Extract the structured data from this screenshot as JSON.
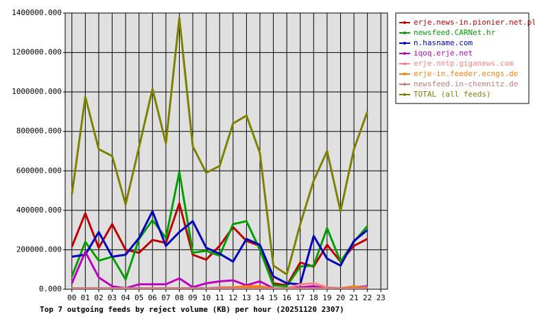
{
  "chart_data": {
    "type": "line",
    "title": "Top 7 outgoing feeds by reject volume (KB) per hour (20251120 2307)",
    "categories": [
      "00",
      "01",
      "02",
      "03",
      "04",
      "05",
      "06",
      "07",
      "08",
      "09",
      "10",
      "11",
      "12",
      "13",
      "14",
      "15",
      "16",
      "17",
      "18",
      "19",
      "20",
      "21",
      "22",
      "23"
    ],
    "ylim": [
      0,
      1400000
    ],
    "yticks": [
      {
        "value": 0,
        "label": "0.000"
      },
      {
        "value": 200000,
        "label": "200000.000"
      },
      {
        "value": 400000,
        "label": "400000.000"
      },
      {
        "value": 600000,
        "label": "600000.000"
      },
      {
        "value": 800000,
        "label": "800000.000"
      },
      {
        "value": 1000000,
        "label": "1000000.000"
      },
      {
        "value": 1200000,
        "label": "1200000.000"
      },
      {
        "value": 1400000,
        "label": "1400000.000"
      }
    ],
    "grid": true,
    "legend": "right",
    "series": [
      {
        "name": "erje.news-in.pionier.net.pl",
        "color": "#c00000",
        "values": [
          215000,
          385000,
          210000,
          330000,
          200000,
          185000,
          250000,
          235000,
          435000,
          175000,
          150000,
          220000,
          315000,
          245000,
          220000,
          30000,
          20000,
          135000,
          115000,
          225000,
          140000,
          220000,
          255000,
          null
        ]
      },
      {
        "name": "newsfeed.CARNet.hr",
        "color": "#00a000",
        "values": [
          65000,
          240000,
          145000,
          165000,
          50000,
          255000,
          350000,
          260000,
          595000,
          185000,
          195000,
          170000,
          330000,
          345000,
          200000,
          20000,
          15000,
          115000,
          120000,
          310000,
          140000,
          240000,
          320000,
          null
        ]
      },
      {
        "name": "n.hasname.com",
        "color": "#0000c0",
        "values": [
          165000,
          175000,
          290000,
          165000,
          175000,
          260000,
          395000,
          220000,
          290000,
          345000,
          210000,
          180000,
          140000,
          255000,
          225000,
          65000,
          30000,
          25000,
          270000,
          155000,
          120000,
          245000,
          300000,
          null
        ]
      },
      {
        "name": "iqoq.erje.net",
        "color": "#c000c0",
        "values": [
          30000,
          190000,
          60000,
          15000,
          5000,
          25000,
          25000,
          25000,
          55000,
          10000,
          30000,
          40000,
          45000,
          20000,
          40000,
          5000,
          5000,
          10000,
          15000,
          5000,
          5000,
          10000,
          15000,
          null
        ]
      },
      {
        "name": "erje.nntp.giganews.com",
        "color": "#ff8080",
        "values": [
          5000,
          5000,
          5000,
          5000,
          5000,
          5000,
          5000,
          5000,
          5000,
          5000,
          5000,
          10000,
          10000,
          10000,
          10000,
          5000,
          5000,
          25000,
          30000,
          10000,
          5000,
          10000,
          10000,
          null
        ]
      },
      {
        "name": "erje-in.feeder.ecngs.de",
        "color": "#ff8000",
        "values": [
          5000,
          5000,
          5000,
          5000,
          5000,
          5000,
          5000,
          5000,
          5000,
          5000,
          5000,
          5000,
          10000,
          15000,
          15000,
          5000,
          5000,
          5000,
          5000,
          5000,
          5000,
          15000,
          5000,
          null
        ]
      },
      {
        "name": "newsfeed.in-chemnitz.de",
        "color": "#c08080",
        "values": [
          5000,
          5000,
          5000,
          5000,
          5000,
          5000,
          5000,
          5000,
          5000,
          5000,
          5000,
          5000,
          5000,
          5000,
          5000,
          5000,
          5000,
          5000,
          5000,
          5000,
          5000,
          5000,
          5000,
          null
        ]
      },
      {
        "name": "TOTAL (all feeds)",
        "color": "#808000",
        "values": [
          480000,
          975000,
          710000,
          675000,
          430000,
          720000,
          1015000,
          740000,
          1375000,
          725000,
          590000,
          625000,
          840000,
          880000,
          690000,
          120000,
          75000,
          330000,
          550000,
          700000,
          395000,
          710000,
          900000,
          null
        ]
      }
    ]
  }
}
